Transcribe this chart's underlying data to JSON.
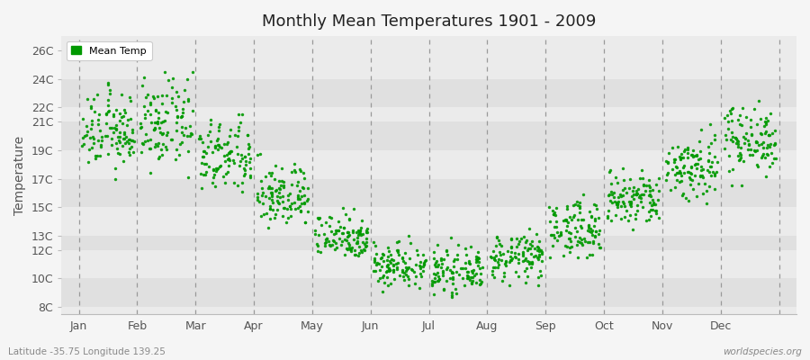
{
  "title": "Monthly Mean Temperatures 1901 - 2009",
  "ylabel": "Temperature",
  "xlabel_bottom_left": "Latitude -35.75 Longitude 139.25",
  "xlabel_bottom_right": "worldspecies.org",
  "legend_label": "Mean Temp",
  "dot_color": "#009900",
  "background_color": "#f5f5f5",
  "plot_bg_color": "#ebebeb",
  "alt_band_color": "#e0e0e0",
  "ytick_labels": [
    "8C",
    "10C",
    "12C",
    "13C",
    "15C",
    "17C",
    "19C",
    "21C",
    "22C",
    "24C",
    "26C"
  ],
  "ytick_values": [
    8,
    10,
    12,
    13,
    15,
    17,
    19,
    21,
    22,
    24,
    26
  ],
  "ylim": [
    7.5,
    27.0
  ],
  "months": [
    "Jan",
    "Feb",
    "Mar",
    "Apr",
    "May",
    "Jun",
    "Jul",
    "Aug",
    "Sep",
    "Oct",
    "Nov",
    "Dec"
  ],
  "month_means": [
    20.3,
    20.8,
    18.5,
    15.8,
    13.0,
    11.0,
    10.5,
    11.5,
    13.5,
    15.5,
    17.8,
    19.8
  ],
  "month_stds": [
    1.3,
    1.5,
    1.3,
    1.1,
    0.8,
    0.8,
    0.7,
    0.8,
    1.0,
    1.0,
    1.2,
    1.2
  ],
  "month_mins": [
    17.0,
    16.5,
    15.0,
    13.0,
    11.5,
    9.0,
    8.5,
    9.5,
    11.5,
    13.0,
    14.5,
    16.5
  ],
  "month_maxs": [
    25.5,
    24.5,
    21.5,
    19.5,
    15.5,
    13.5,
    13.0,
    13.5,
    16.5,
    18.5,
    21.5,
    22.5
  ],
  "n_years": 109,
  "figsize": [
    9.0,
    4.0
  ],
  "dpi": 100
}
